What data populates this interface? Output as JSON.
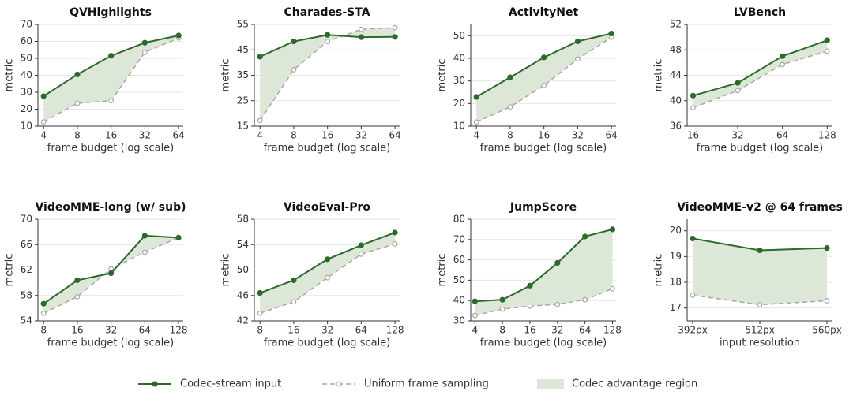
{
  "legend": [
    {
      "name": "Codec-stream input",
      "color": "#2b6a2b",
      "style": "solid"
    },
    {
      "name": "Uniform frame sampling",
      "color": "#a8a8a8",
      "style": "dashed"
    },
    {
      "name": "Codec advantage region",
      "color": "#dce7d8",
      "style": "fill"
    }
  ],
  "chart_data": [
    {
      "type": "line",
      "title": "QVHighlights",
      "xlabel": "frame budget (log scale)",
      "ylabel": "metric",
      "xscale": "log",
      "grid": true,
      "x": [
        4,
        8,
        16,
        32,
        64
      ],
      "xticks": [
        4,
        8,
        16,
        32,
        64
      ],
      "xlim": [
        3.56,
        70.4
      ],
      "ylim": [
        10,
        70
      ],
      "yticks": [
        10,
        20,
        30,
        40,
        50,
        60,
        70
      ],
      "series": [
        {
          "values": [
            27.7,
            40.5,
            51.5,
            59.2,
            63.5
          ]
        },
        {
          "values": [
            12.5,
            23.5,
            25,
            53.5,
            62
          ]
        }
      ]
    },
    {
      "type": "line",
      "title": "Charades-STA",
      "xlabel": "frame budget (log scale)",
      "ylabel": "metric",
      "xscale": "log",
      "grid": true,
      "x": [
        4,
        8,
        16,
        32,
        64
      ],
      "xticks": [
        4,
        8,
        16,
        32,
        64
      ],
      "xlim": [
        3.56,
        70.4
      ],
      "ylim": [
        15,
        55
      ],
      "yticks": [
        15,
        25,
        35,
        45,
        55
      ],
      "series": [
        {
          "values": [
            42.3,
            48.3,
            50.9,
            50,
            50.1
          ]
        },
        {
          "values": [
            17.2,
            37.2,
            48.3,
            53.1,
            53.7
          ]
        }
      ]
    },
    {
      "type": "line",
      "title": "ActivityNet",
      "xlabel": "frame budget (log scale)",
      "ylabel": "metric",
      "xscale": "log",
      "grid": true,
      "x": [
        4,
        8,
        16,
        32,
        64
      ],
      "xticks": [
        4,
        8,
        16,
        32,
        64
      ],
      "xlim": [
        3.56,
        70.4
      ],
      "ylim": [
        10,
        55
      ],
      "yticks": [
        10,
        20,
        30,
        40,
        50
      ],
      "series": [
        {
          "values": [
            22.9,
            31.6,
            40.4,
            47.5,
            51
          ]
        },
        {
          "values": [
            11.8,
            18.5,
            28,
            39.7,
            49.3
          ]
        }
      ]
    },
    {
      "type": "line",
      "title": "LVBench",
      "xlabel": "frame budget (log scale)",
      "ylabel": "metric",
      "xscale": "log",
      "grid": true,
      "x": [
        16,
        32,
        64,
        128
      ],
      "xticks": [
        16,
        32,
        64,
        128
      ],
      "xlim": [
        14.6,
        139
      ],
      "ylim": [
        36,
        52
      ],
      "yticks": [
        36,
        40,
        44,
        48,
        52
      ],
      "series": [
        {
          "values": [
            40.8,
            42.8,
            47,
            49.5
          ]
        },
        {
          "values": [
            38.9,
            41.6,
            45.7,
            47.8
          ]
        }
      ]
    },
    {
      "type": "line",
      "title": "VideoMME-long (w/ sub)",
      "xlabel": "frame budget (log scale)",
      "ylabel": "metric",
      "xscale": "log",
      "grid": true,
      "x": [
        8,
        16,
        32,
        64,
        128
      ],
      "xticks": [
        8,
        16,
        32,
        64,
        128
      ],
      "xlim": [
        7.12,
        141
      ],
      "ylim": [
        54,
        70
      ],
      "yticks": [
        54,
        58,
        62,
        66,
        70
      ],
      "series": [
        {
          "values": [
            56.7,
            60.4,
            61.5,
            67.4,
            67.1
          ]
        },
        {
          "values": [
            55.2,
            57.8,
            62.2,
            64.8,
            67.1
          ]
        }
      ]
    },
    {
      "type": "line",
      "title": "VideoEval-Pro",
      "xlabel": "frame budget (log scale)",
      "ylabel": "metric",
      "xscale": "log",
      "grid": true,
      "x": [
        8,
        16,
        32,
        64,
        128
      ],
      "xticks": [
        8,
        16,
        32,
        64,
        128
      ],
      "xlim": [
        7.12,
        141
      ],
      "ylim": [
        42,
        58
      ],
      "yticks": [
        42,
        46,
        50,
        54,
        58
      ],
      "series": [
        {
          "values": [
            46.4,
            48.4,
            51.7,
            53.9,
            55.9
          ]
        },
        {
          "values": [
            43.2,
            45,
            48.8,
            52.5,
            54.1
          ]
        }
      ]
    },
    {
      "type": "line",
      "title": "JumpScore",
      "xlabel": "frame budget (log scale)",
      "ylabel": "metric",
      "xscale": "log",
      "grid": true,
      "x": [
        4,
        8,
        16,
        32,
        64,
        128
      ],
      "xticks": [
        4,
        8,
        16,
        32,
        64,
        128
      ],
      "xlim": [
        3.6,
        140
      ],
      "ylim": [
        30,
        80
      ],
      "yticks": [
        30,
        40,
        50,
        60,
        70,
        80
      ],
      "series": [
        {
          "values": [
            39.6,
            40.4,
            47.3,
            58.5,
            71.5,
            75
          ]
        },
        {
          "values": [
            32.7,
            35.8,
            37.3,
            38.1,
            40.4,
            45.8
          ]
        }
      ]
    },
    {
      "type": "line",
      "title": "VideoMME-v2 @ 64 frames",
      "xlabel": "input resolution",
      "ylabel": "metric",
      "grid": true,
      "categories": [
        "392px",
        "512px",
        "560px"
      ],
      "ylim": [
        16.5,
        20.45
      ],
      "yticks": [
        17,
        18,
        19,
        20
      ],
      "series": [
        {
          "values": [
            19.7,
            19.24,
            19.33
          ]
        },
        {
          "values": [
            17.5,
            17.13,
            17.28
          ]
        }
      ]
    }
  ]
}
